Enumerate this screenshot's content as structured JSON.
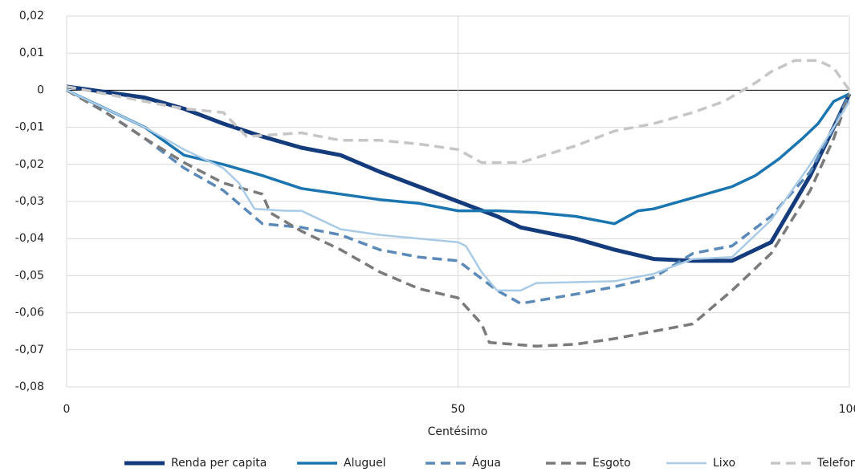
{
  "chart_data": {
    "type": "line",
    "x_label": "Centésimo",
    "xlim": [
      0,
      100
    ],
    "xticks": [
      0,
      50,
      100
    ],
    "ylim": [
      -0.08,
      0.02
    ],
    "yticks": [
      {
        "value": -0.08,
        "label": "-0,08"
      },
      {
        "value": -0.07,
        "label": "-0,07"
      },
      {
        "value": -0.06,
        "label": "-0,06"
      },
      {
        "value": -0.05,
        "label": "-0,05"
      },
      {
        "value": -0.04,
        "label": "-0,04"
      },
      {
        "value": -0.03,
        "label": "-0,03"
      },
      {
        "value": -0.02,
        "label": "-0,02"
      },
      {
        "value": -0.01,
        "label": "-0,01"
      },
      0,
      {
        "value": 0.01,
        "label": "0,01"
      },
      {
        "value": 0.02,
        "label": "0,02"
      }
    ],
    "grid": true,
    "legend": "bottom",
    "series": [
      {
        "name": "Renda per capita",
        "color": "#143c7c",
        "dashed": false,
        "width": 5,
        "x": [
          0,
          5,
          10,
          15,
          20,
          25,
          30,
          35,
          40,
          45,
          50,
          55,
          58,
          65,
          70,
          75,
          80,
          85,
          90,
          95,
          98,
          100
        ],
        "values": [
          0.001,
          -0.0005,
          -0.002,
          -0.005,
          -0.009,
          -0.0125,
          -0.0155,
          -0.0175,
          -0.022,
          -0.026,
          -0.03,
          -0.034,
          -0.037,
          -0.04,
          -0.043,
          -0.0455,
          -0.046,
          -0.046,
          -0.041,
          -0.023,
          -0.01,
          -0.001
        ]
      },
      {
        "name": "Aluguel",
        "color": "#1a75b0",
        "dashed": false,
        "width": 3.5,
        "x": [
          0,
          5,
          10,
          15,
          20,
          25,
          30,
          35,
          40,
          45,
          50,
          55,
          60,
          65,
          70,
          73,
          75,
          80,
          85,
          88,
          91,
          94,
          96,
          98,
          100
        ],
        "values": [
          0,
          -0.005,
          -0.01,
          -0.0175,
          -0.02,
          -0.023,
          -0.0265,
          -0.028,
          -0.0295,
          -0.0305,
          -0.0325,
          -0.0325,
          -0.033,
          -0.034,
          -0.036,
          -0.0325,
          -0.032,
          -0.029,
          -0.026,
          -0.023,
          -0.0185,
          -0.013,
          -0.009,
          -0.003,
          -0.001
        ]
      },
      {
        "name": "Água",
        "color": "#5b8ab8",
        "dashed": true,
        "width": 3.5,
        "x": [
          0,
          5,
          10,
          15,
          20,
          25,
          30,
          35,
          40,
          45,
          50,
          55,
          58,
          65,
          70,
          75,
          80,
          85,
          90,
          95,
          98,
          100
        ],
        "values": [
          0,
          -0.006,
          -0.013,
          -0.021,
          -0.027,
          -0.036,
          -0.037,
          -0.039,
          -0.043,
          -0.045,
          -0.046,
          -0.054,
          -0.0575,
          -0.055,
          -0.053,
          -0.0505,
          -0.044,
          -0.042,
          -0.034,
          -0.022,
          -0.01,
          -0.001
        ]
      },
      {
        "name": "Esgoto",
        "color": "#7a7a7a",
        "dashed": true,
        "width": 3.5,
        "x": [
          0,
          5,
          10,
          15,
          20,
          25,
          26,
          30,
          35,
          40,
          45,
          50,
          53,
          54,
          60,
          65,
          70,
          75,
          80,
          85,
          90,
          95,
          98,
          100
        ],
        "values": [
          0,
          -0.006,
          -0.013,
          -0.0195,
          -0.025,
          -0.028,
          -0.033,
          -0.038,
          -0.043,
          -0.049,
          -0.0535,
          -0.056,
          -0.063,
          -0.068,
          -0.069,
          -0.0685,
          -0.067,
          -0.065,
          -0.063,
          -0.054,
          -0.044,
          -0.027,
          -0.013,
          -0.001
        ]
      },
      {
        "name": "Lixo",
        "color": "#a9cbe6",
        "dashed": false,
        "width": 2.5,
        "x": [
          0,
          5,
          10,
          15,
          20,
          22,
          24,
          28,
          30,
          35,
          40,
          45,
          50,
          51,
          53,
          55,
          58,
          60,
          70,
          75,
          80,
          85,
          90,
          95,
          98,
          100
        ],
        "values": [
          0,
          -0.005,
          -0.01,
          -0.016,
          -0.021,
          -0.025,
          -0.032,
          -0.0325,
          -0.0325,
          -0.0375,
          -0.039,
          -0.04,
          -0.041,
          -0.042,
          -0.049,
          -0.054,
          -0.054,
          -0.052,
          -0.0515,
          -0.0495,
          -0.0455,
          -0.045,
          -0.035,
          -0.02,
          -0.01,
          -0.003
        ]
      },
      {
        "name": "Telefone",
        "color": "#c6c6c6",
        "dashed": true,
        "width": 3.5,
        "x": [
          0,
          5,
          10,
          15,
          20,
          23,
          30,
          35,
          40,
          45,
          50,
          53,
          58,
          65,
          70,
          75,
          80,
          84,
          88,
          90,
          93,
          96,
          98,
          100
        ],
        "values": [
          0.001,
          -0.001,
          -0.003,
          -0.005,
          -0.006,
          -0.0125,
          -0.0115,
          -0.0135,
          -0.0135,
          -0.0145,
          -0.016,
          -0.0195,
          -0.0195,
          -0.015,
          -0.011,
          -0.009,
          -0.006,
          -0.003,
          0.002,
          0.005,
          0.008,
          0.008,
          0.006,
          0
        ]
      }
    ]
  }
}
